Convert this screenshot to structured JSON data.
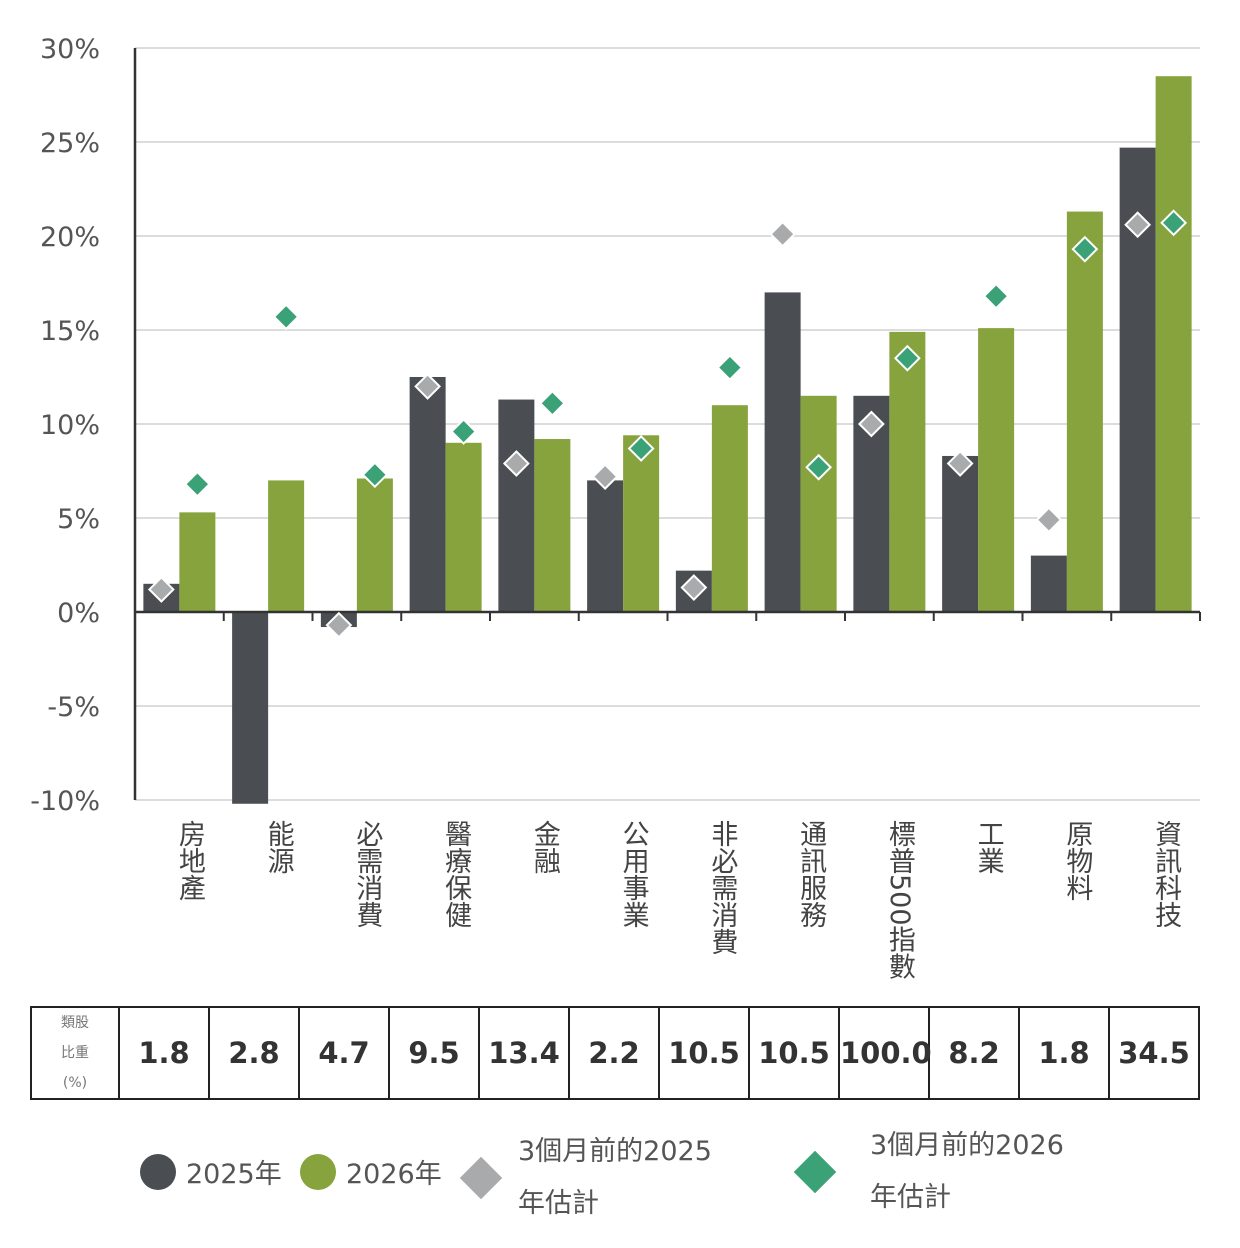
{
  "chart_data": {
    "type": "bar",
    "categories": [
      "房地產",
      "能源",
      "必需消費",
      "醫療保健",
      "金融",
      "公用事業",
      "非必需消費",
      "通訊服務",
      "標普500指數",
      "工業",
      "原物料",
      "資訊科技"
    ],
    "series": [
      {
        "name": "2025年",
        "type": "bar",
        "color": "#4a4e52",
        "values": [
          1.5,
          -10.2,
          -0.8,
          12.5,
          11.3,
          7.0,
          2.2,
          17.0,
          11.5,
          8.3,
          3.0,
          24.7
        ]
      },
      {
        "name": "2026年",
        "type": "bar",
        "color": "#86a33d",
        "values": [
          5.3,
          7.0,
          7.1,
          9.0,
          9.2,
          9.4,
          11.0,
          11.5,
          14.9,
          15.1,
          21.3,
          28.5
        ]
      },
      {
        "name": "3個月前的2025年估計",
        "type": "marker",
        "color": "#a9aaac",
        "values": [
          1.2,
          null,
          -0.7,
          12.0,
          7.9,
          7.2,
          1.3,
          20.1,
          10.0,
          7.9,
          4.9,
          20.6
        ]
      },
      {
        "name": "3個月前的2026年估計",
        "type": "marker",
        "color": "#3ba177",
        "values": [
          6.8,
          15.7,
          7.3,
          9.6,
          11.1,
          8.7,
          13.0,
          7.7,
          13.5,
          16.8,
          19.3,
          20.7
        ]
      }
    ],
    "ylim": [
      -10,
      30
    ],
    "yticks": [
      30,
      25,
      20,
      15,
      10,
      5,
      0,
      -5,
      -10
    ],
    "ytick_labels": [
      "30%",
      "25%",
      "20%",
      "15%",
      "10%",
      "5%",
      "0%",
      "-5%",
      "-10%"
    ],
    "grid": true,
    "legend_position": "bottom"
  },
  "weights_table": {
    "header_lines": [
      "類股",
      "比重",
      "(%)"
    ],
    "values": [
      "1.8",
      "2.8",
      "4.7",
      "9.5",
      "13.4",
      "2.2",
      "10.5",
      "10.5",
      "100.0",
      "8.2",
      "1.8",
      "34.5"
    ]
  },
  "legend": {
    "items": [
      {
        "label": "2025年",
        "color": "#4a4e52"
      },
      {
        "label": "2026年",
        "color": "#86a33d"
      },
      {
        "line1": "3個月前的2025",
        "line2": "年估計",
        "color": "#a9aaac"
      },
      {
        "line1": "3個月前的2026",
        "line2": "年估計",
        "color": "#3ba177"
      }
    ]
  }
}
